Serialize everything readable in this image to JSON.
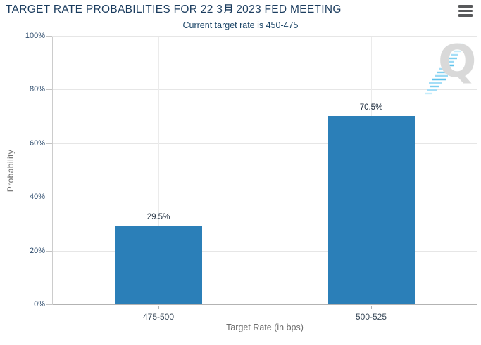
{
  "header": {
    "title_full": "TARGET RATE PROBABILITIES FOR 22 3月 2023 FED MEETING",
    "title_before": "TARGET RATE PROBABILITIES FOR 22 3",
    "title_month_glyph": "月",
    "title_after": "2023 FED MEETING",
    "subtitle": "Current target rate is 450-475",
    "menu_icon": "hamburger-menu-icon"
  },
  "chart_data": {
    "type": "bar",
    "title": "TARGET RATE PROBABILITIES FOR 22 3月 2023 FED MEETING",
    "subtitle": "Current target rate is 450-475",
    "categories": [
      "475-500",
      "500-525"
    ],
    "values": [
      29.5,
      70.5
    ],
    "value_labels": [
      "29.5%",
      "70.5%"
    ],
    "xlabel": "Target Rate (in bps)",
    "ylabel": "Probability",
    "ylim": [
      0,
      100
    ],
    "yticks": [
      0,
      20,
      40,
      60,
      80,
      100
    ],
    "ytick_labels": [
      "0%",
      "20%",
      "40%",
      "60%",
      "80%",
      "100%"
    ],
    "grid": true,
    "legend": "none",
    "bar_color": "#2b7fb8"
  },
  "watermark": {
    "letter": "Q"
  },
  "colors": {
    "title": "#1c3d5f",
    "subtitle": "#1d4668",
    "bar": "#2b7fb8",
    "axis_title": "#6e6e6e",
    "ytick_label": "#2f4d6e",
    "category_label": "#3a4a5a",
    "value_label": "#1b2a3b",
    "gridline": "#e6e6e6",
    "axis_line": "#b3b3b3",
    "menu_icon": "#58595b",
    "watermark_q": "#d9d9d9",
    "watermark_dash": "#7ccef0"
  }
}
